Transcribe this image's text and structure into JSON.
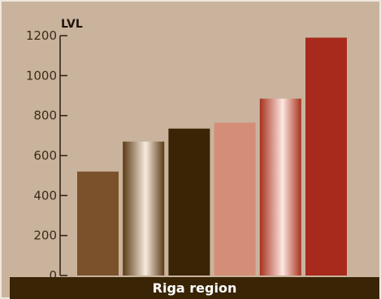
{
  "chart_data": {
    "type": "bar",
    "ylabel": "LVL",
    "xlabel": "Riga region",
    "ylim": [
      0,
      1200
    ],
    "yticks": [
      0,
      200,
      400,
      600,
      800,
      1000,
      1200
    ],
    "values": [
      520,
      670,
      735,
      765,
      885,
      1190
    ],
    "bar_styles": [
      {
        "fill": "#7a512b",
        "gradient": false
      },
      {
        "fill": "#5a3a14",
        "gradient": true,
        "light": "#f8ece0"
      },
      {
        "fill": "#3a2406",
        "gradient": false
      },
      {
        "fill": "#d48e78",
        "gradient": false
      },
      {
        "fill": "#a8321f",
        "gradient": true,
        "light": "#fde7e0"
      },
      {
        "fill": "#a82a1c",
        "gradient": false
      }
    ],
    "grid": false,
    "legend": "none"
  }
}
